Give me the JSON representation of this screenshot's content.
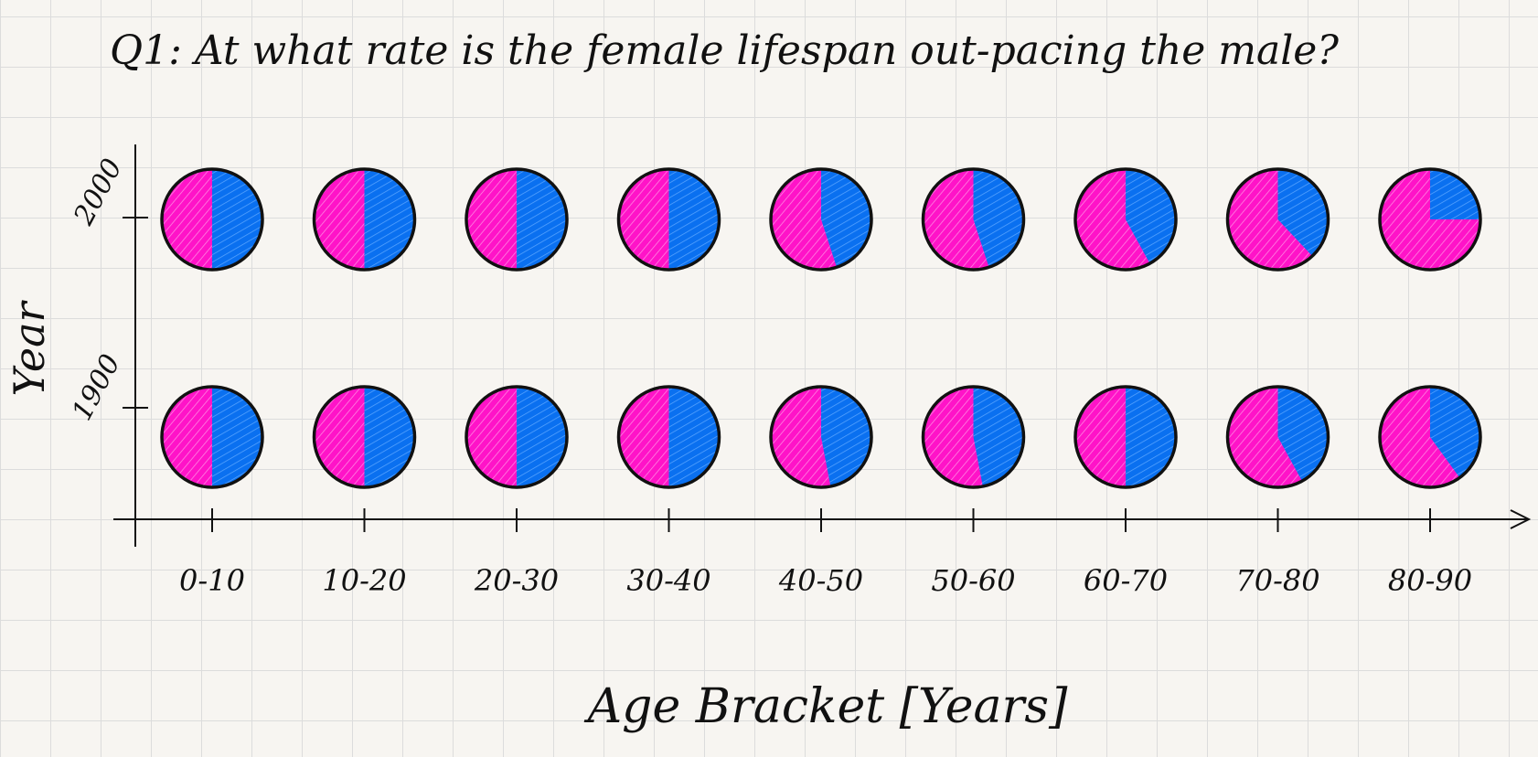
{
  "chart_data": {
    "type": "pie",
    "title": "Q1: At what rate is the female lifespan out-pacing the male?",
    "xlabel": "Age Bracket [Years]",
    "ylabel": "Year",
    "categories": [
      "0-10",
      "10-20",
      "20-30",
      "30-40",
      "40-50",
      "50-60",
      "60-70",
      "70-80",
      "80-90"
    ],
    "years": [
      "2000",
      "1900"
    ],
    "colors": {
      "female": "#ff13c8",
      "male": "#0a70f0"
    },
    "female_share": {
      "2000": [
        0.5,
        0.5,
        0.5,
        0.5,
        0.55,
        0.55,
        0.58,
        0.62,
        0.75
      ],
      "1900": [
        0.5,
        0.5,
        0.5,
        0.5,
        0.53,
        0.53,
        0.5,
        0.58,
        0.6
      ]
    },
    "arrow": true
  }
}
